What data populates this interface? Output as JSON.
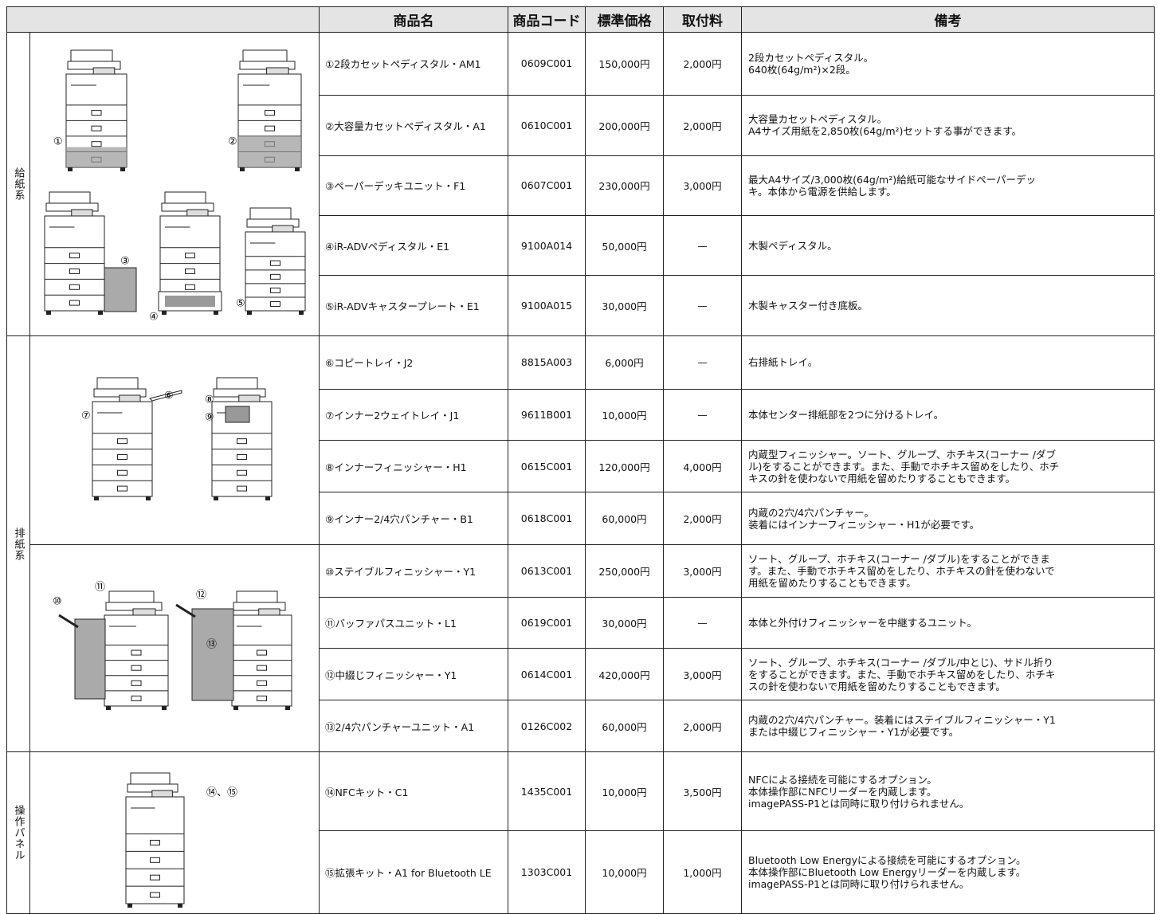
{
  "header": {
    "name": "商品名",
    "code": "商品コード",
    "price": "標準価格",
    "fee": "取付料",
    "notes": "備考"
  },
  "groups": [
    {
      "category": "給紙系",
      "rows": [
        {
          "name": "①2段カセットペディスタル・AM1",
          "code": "0609C001",
          "price": "150,000円",
          "fee": "2,000円",
          "notes": [
            "2段カセットペディスタル。",
            "640枚(64g/m²)×2段。"
          ]
        },
        {
          "name": "②大容量カセットペディスタル・A1",
          "code": "0610C001",
          "price": "200,000円",
          "fee": "2,000円",
          "notes": [
            "大容量カセットペディスタル。",
            "A4サイズ用紙を2,850枚(64g/m²)セットする事ができます。"
          ]
        },
        {
          "name": "③ペーパーデッキユニット・F1",
          "code": "0607C001",
          "price": "230,000円",
          "fee": "3,000円",
          "notes": [
            "最大A4サイズ/3,000枚(64g/m²)給紙可能なサイドペーパーデッ",
            "キ。本体から電源を供給します。"
          ]
        },
        {
          "name": "④iR-ADVペディスタル・E1",
          "code": "9100A014",
          "price": "50,000円",
          "fee": "—",
          "notes": [
            "木製ペディスタル。"
          ]
        },
        {
          "name": "⑤iR-ADVキャスタープレート・E1",
          "code": "9100A015",
          "price": "30,000円",
          "fee": "—",
          "notes": [
            "木製キャスター付き底板。"
          ]
        }
      ]
    },
    {
      "category": "排紙系",
      "rows": [
        {
          "name": "⑥コピートレイ・J2",
          "code": "8815A003",
          "price": "6,000円",
          "fee": "—",
          "notes": [
            "右排紙トレイ。"
          ]
        },
        {
          "name": "⑦インナー2ウェイトレイ・J1",
          "code": "9611B001",
          "price": "10,000円",
          "fee": "—",
          "notes": [
            "本体センター排紙部を2つに分けるトレイ。"
          ]
        },
        {
          "name": "⑧インナーフィニッシャー・H1",
          "code": "0615C001",
          "price": "120,000円",
          "fee": "4,000円",
          "notes": [
            "内蔵型フィニッシャー。ソート、グループ、ホチキス(コーナー /ダブ",
            "ル)をすることができます。また、手動でホチキス留めをしたり、ホチ",
            "キスの針を使わないで用紙を留めたりすることもできます。"
          ]
        },
        {
          "name": "⑨インナー2/4穴パンチャー・B1",
          "code": "0618C001",
          "price": "60,000円",
          "fee": "2,000円",
          "notes": [
            "内蔵の2穴/4穴パンチャー。",
            "装着にはインナーフィニッシャー・H1が必要です。"
          ]
        },
        {
          "name": "⑩ステイブルフィニッシャー・Y1",
          "code": "0613C001",
          "price": "250,000円",
          "fee": "3,000円",
          "notes": [
            "ソート、グループ、ホチキス(コーナー /ダブル)をすることができま",
            "す。また、手動でホチキス留めをしたり、ホチキスの針を使わないで",
            "用紙を留めたりすることもできます。"
          ]
        },
        {
          "name": "⑪バッファパスユニット・L1",
          "code": "0619C001",
          "price": "30,000円",
          "fee": "—",
          "notes": [
            "本体と外付けフィニッシャーを中継するユニット。"
          ]
        },
        {
          "name": "⑫中綴じフィニッシャー・Y1",
          "code": "0614C001",
          "price": "420,000円",
          "fee": "3,000円",
          "notes": [
            "ソート、グループ、ホチキス(コーナー /ダブル/中とじ)、サドル折り",
            "をすることができます。また、手動でホチキス留めをしたり、ホチキ",
            "スの針を使わないで用紙を留めたりすることもできます。"
          ]
        },
        {
          "name": "⑬2/4穴パンチャーユニット・A1",
          "code": "0126C002",
          "price": "60,000円",
          "fee": "2,000円",
          "notes": [
            "内蔵の2穴/4穴パンチャー。装着にはステイブルフィニッシャー・Y1",
            "または中綴じフィニッシャー・Y1が必要です。"
          ]
        }
      ]
    },
    {
      "category": "操作パネル",
      "rows": [
        {
          "name": "⑭NFCキット・C1",
          "code": "1435C001",
          "price": "10,000円",
          "fee": "3,500円",
          "notes": [
            "NFCによる接続を可能にするオプション。",
            "本体操作部にNFCリーダーを内蔵します。",
            "imagePASS-P1とは同時に取り付けられません。"
          ]
        },
        {
          "name": "⑮拡張キット・A1 for Bluetooth LE",
          "code": "1303C001",
          "price": "10,000円",
          "fee": "1,000円",
          "notes": [
            "Bluetooth Low Energyによる接続を可能にするオプション。",
            "本体操作部にBluetooth Low Energyリーダーを内蔵します。",
            "imagePASS-P1とは同時に取り付けられません。"
          ]
        }
      ]
    }
  ],
  "images": [
    {
      "labels": [
        "①",
        "②",
        "③",
        "④",
        "⑤"
      ]
    },
    {
      "labels": [
        "⑥",
        "⑦",
        "⑧",
        "⑨"
      ]
    },
    {
      "labels": [
        "⑩",
        "⑪",
        "⑫",
        "⑬"
      ]
    },
    {
      "labels": [
        "⑭、⑮"
      ]
    }
  ]
}
